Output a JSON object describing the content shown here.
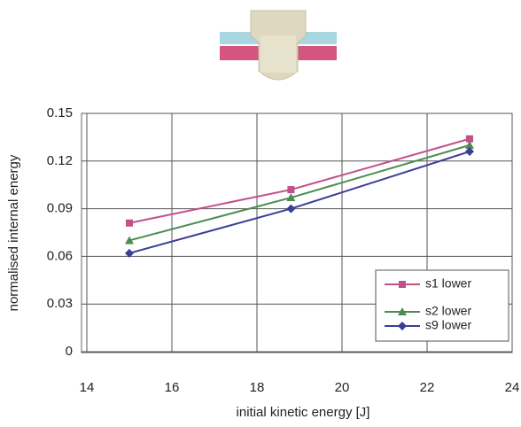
{
  "chart_data": {
    "type": "line",
    "x_label": "initial kinetic energy [J]",
    "y_label": "normalised internal energy",
    "x": [
      15,
      18.8,
      23
    ],
    "series": [
      {
        "name": "s1 lower",
        "color": "#c2508a",
        "marker": "square",
        "values": [
          0.081,
          0.102,
          0.134
        ]
      },
      {
        "name": "s2 lower",
        "color": "#4b8c52",
        "marker": "triangle",
        "values": [
          0.07,
          0.097,
          0.13
        ]
      },
      {
        "name": "s9 lower",
        "color": "#3b3d98",
        "marker": "diamond",
        "values": [
          0.062,
          0.09,
          0.126
        ]
      }
    ],
    "xlim": [
      14,
      24
    ],
    "xticks": [
      14,
      16,
      18,
      20,
      22,
      24
    ],
    "ylim": [
      0,
      0.15
    ],
    "yticks": [
      0,
      0.03,
      0.06,
      0.09,
      0.12,
      0.15
    ],
    "grid": true,
    "legend": "lower right"
  }
}
